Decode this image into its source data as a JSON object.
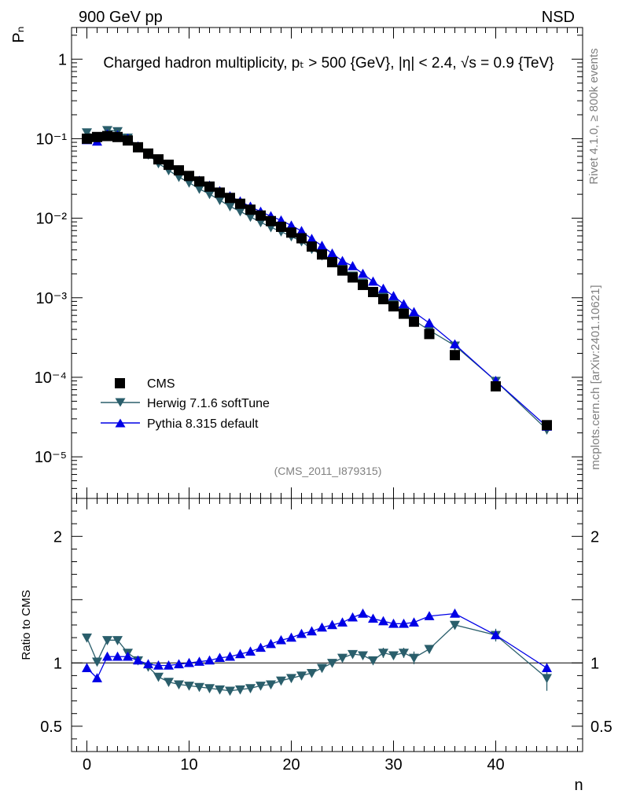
{
  "header": {
    "left": "900 GeV pp",
    "right": "NSD",
    "title": "Charged hadron multiplicity, pₜ > 500 {GeV}, |η| < 2.4, √s = 0.9 {TeV}",
    "watermark": "(CMS_2011_I879315)",
    "side_rivet": "Rivet 4.1.0, ≥ 800k events",
    "side_mcplots": "mcplots.cern.ch [arXiv:2401.10621]"
  },
  "chart_data": [
    {
      "type": "scatter",
      "panel": "main",
      "ylabel": "Pₙ",
      "xlabel": "",
      "yscale": "log",
      "xlim": [
        -1.5,
        48.5
      ],
      "ylim": [
        3e-06,
        2.5
      ],
      "y_ticks": [
        {
          "value": 1,
          "label": "1"
        },
        {
          "value": 0.1,
          "label": "10⁻¹"
        },
        {
          "value": 0.01,
          "label": "10⁻²"
        },
        {
          "value": 0.001,
          "label": "10⁻³"
        },
        {
          "value": 0.0001,
          "label": "10⁻⁴"
        },
        {
          "value": 1e-05,
          "label": "10⁻⁵"
        }
      ],
      "legend_position": "bottom-left",
      "series": [
        {
          "name": "CMS",
          "marker": "square",
          "color": "#000000",
          "x": [
            0,
            1,
            2,
            3,
            4,
            5,
            6,
            7,
            8,
            9,
            10,
            11,
            12,
            13,
            14,
            15,
            16,
            17,
            18,
            19,
            20,
            21,
            22,
            23,
            24,
            25,
            26,
            27,
            28,
            29,
            30,
            31,
            32,
            33.5,
            36,
            40,
            45
          ],
          "values": [
            0.1,
            0.105,
            0.108,
            0.105,
            0.095,
            0.078,
            0.065,
            0.055,
            0.047,
            0.04,
            0.034,
            0.029,
            0.025,
            0.021,
            0.018,
            0.0152,
            0.0128,
            0.0108,
            0.0092,
            0.0078,
            0.0066,
            0.0056,
            0.0044,
            0.0035,
            0.0028,
            0.0022,
            0.0018,
            0.00145,
            0.00118,
            0.00096,
            0.00078,
            0.00063,
            0.0005,
            0.00035,
            0.00019,
            7.7e-05,
            2.5e-05
          ]
        },
        {
          "name": "Herwig 7.1.6 softTune",
          "marker": "triangle-down",
          "color": "#2a5e6b",
          "x": [
            0,
            1,
            2,
            3,
            4,
            5,
            6,
            7,
            8,
            9,
            10,
            11,
            12,
            13,
            14,
            15,
            16,
            17,
            18,
            19,
            20,
            21,
            22,
            23,
            24,
            25,
            26,
            27,
            28,
            29,
            30,
            31,
            32,
            33.5,
            36,
            40,
            45
          ],
          "values": [
            0.12,
            0.106,
            0.128,
            0.124,
            0.103,
            0.079,
            0.063,
            0.049,
            0.04,
            0.033,
            0.028,
            0.0234,
            0.0201,
            0.0169,
            0.0141,
            0.0122,
            0.0104,
            0.0089,
            0.0077,
            0.0068,
            0.0059,
            0.0051,
            0.0041,
            0.0034,
            0.0028,
            0.0023,
            0.0019,
            0.00155,
            0.0012,
            0.00104,
            0.00083,
            0.00069,
            0.00052,
            0.00039,
            0.00025,
            9e-05,
            2.2e-05
          ]
        },
        {
          "name": "Pythia 8.315 default",
          "marker": "triangle-up",
          "color": "#0000e6",
          "x": [
            0,
            1,
            2,
            3,
            4,
            5,
            6,
            7,
            8,
            9,
            10,
            11,
            12,
            13,
            14,
            15,
            16,
            17,
            18,
            19,
            20,
            21,
            22,
            23,
            24,
            25,
            26,
            27,
            28,
            29,
            30,
            31,
            32,
            33.5,
            36,
            40,
            45
          ],
          "values": [
            0.096,
            0.092,
            0.113,
            0.11,
            0.1,
            0.08,
            0.064,
            0.054,
            0.046,
            0.04,
            0.034,
            0.0296,
            0.0257,
            0.0219,
            0.0189,
            0.0163,
            0.014,
            0.0121,
            0.0106,
            0.0094,
            0.0081,
            0.0069,
            0.0055,
            0.0045,
            0.0036,
            0.0029,
            0.0025,
            0.002,
            0.0016,
            0.0013,
            0.00105,
            0.00083,
            0.00066,
            0.00048,
            0.00026,
            9e-05,
            2.4e-05
          ]
        }
      ]
    },
    {
      "type": "line",
      "panel": "ratio",
      "ylabel": "Ratio to CMS",
      "xlabel": "n",
      "xlim": [
        -1.5,
        48.5
      ],
      "ylim": [
        0.3,
        2.3
      ],
      "y_ticks": [
        {
          "value": 0.5,
          "label": "0.5"
        },
        {
          "value": 1,
          "label": "1"
        },
        {
          "value": 2,
          "label": "2"
        }
      ],
      "x_ticks": [
        {
          "value": 0,
          "label": "0"
        },
        {
          "value": 10,
          "label": "10"
        },
        {
          "value": 20,
          "label": "20"
        },
        {
          "value": 30,
          "label": "30"
        },
        {
          "value": 40,
          "label": "40"
        }
      ],
      "reference_line": 1,
      "series": [
        {
          "name": "Herwig 7.1.6 softTune",
          "marker": "triangle-down",
          "color": "#2a5e6b",
          "x": [
            0,
            1,
            2,
            3,
            4,
            5,
            6,
            7,
            8,
            9,
            10,
            11,
            12,
            13,
            14,
            15,
            16,
            17,
            18,
            19,
            20,
            21,
            22,
            23,
            24,
            25,
            26,
            27,
            28,
            29,
            30,
            31,
            32,
            33.5,
            36,
            40,
            45
          ],
          "values": [
            1.2,
            1.01,
            1.18,
            1.18,
            1.08,
            1.02,
            0.97,
            0.89,
            0.85,
            0.83,
            0.82,
            0.81,
            0.8,
            0.79,
            0.78,
            0.79,
            0.8,
            0.82,
            0.83,
            0.86,
            0.88,
            0.9,
            0.92,
            0.96,
            1.0,
            1.04,
            1.07,
            1.06,
            1.02,
            1.08,
            1.06,
            1.08,
            1.04,
            1.11,
            1.3,
            1.22,
            0.88
          ],
          "errors": [
            0,
            0,
            0,
            0,
            0,
            0,
            0,
            0,
            0,
            0,
            0,
            0,
            0,
            0,
            0,
            0,
            0,
            0,
            0,
            0,
            0,
            0,
            0,
            0,
            0,
            0,
            0,
            0,
            0,
            0.04,
            0,
            0.04,
            0.05,
            0.03,
            0.03,
            0.05,
            0.1
          ]
        },
        {
          "name": "Pythia 8.315 default",
          "marker": "triangle-up",
          "color": "#0000e6",
          "x": [
            0,
            1,
            2,
            3,
            4,
            5,
            6,
            7,
            8,
            9,
            10,
            11,
            12,
            13,
            14,
            15,
            16,
            17,
            18,
            19,
            20,
            21,
            22,
            23,
            24,
            25,
            26,
            27,
            28,
            29,
            30,
            31,
            32,
            33.5,
            36,
            40,
            45
          ],
          "values": [
            0.96,
            0.88,
            1.05,
            1.05,
            1.05,
            1.02,
            0.99,
            0.98,
            0.98,
            0.99,
            1.0,
            1.01,
            1.02,
            1.04,
            1.05,
            1.07,
            1.09,
            1.12,
            1.15,
            1.18,
            1.2,
            1.23,
            1.25,
            1.28,
            1.3,
            1.32,
            1.36,
            1.39,
            1.35,
            1.33,
            1.31,
            1.31,
            1.32,
            1.37,
            1.39,
            1.22,
            0.96
          ]
        }
      ]
    }
  ]
}
